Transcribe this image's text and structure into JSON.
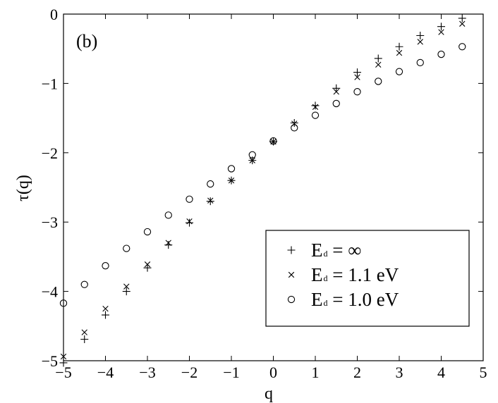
{
  "chart_data": {
    "type": "scatter",
    "panel_label": "(b)",
    "xlabel": "q",
    "ylabel": "τ(q)",
    "xlim": [
      -5,
      5
    ],
    "ylim": [
      -5,
      0
    ],
    "xticks": [
      "−5",
      "−4",
      "−3",
      "−2",
      "−1",
      "0",
      "1",
      "2",
      "3",
      "4",
      "5"
    ],
    "yticks": [
      "0",
      "−1",
      "−2",
      "−3",
      "−4",
      "−5"
    ],
    "grid": false,
    "legend_position": "lower-right",
    "series": [
      {
        "name": "E d = ∞",
        "legend": {
          "main": "E",
          "sub": "d",
          "rest": " = ∞"
        },
        "marker": "plus",
        "x": [
          -5,
          -4.5,
          -4,
          -3.5,
          -3,
          -2.5,
          -2,
          -1.5,
          -1,
          -0.5,
          0,
          0.5,
          1,
          1.5,
          2,
          2.5,
          3,
          3.5,
          4,
          4.5
        ],
        "y": [
          -5.03,
          -4.69,
          -4.34,
          -4.0,
          -3.66,
          -3.33,
          -3.01,
          -2.7,
          -2.4,
          -2.11,
          -1.84,
          -1.57,
          -1.32,
          -1.07,
          -0.84,
          -0.64,
          -0.47,
          -0.31,
          -0.18,
          -0.06
        ]
      },
      {
        "name": "E d = 1.1 eV",
        "legend": {
          "main": "E",
          "sub": "d",
          "rest": " = 1.1 eV"
        },
        "marker": "cross",
        "x": [
          -5,
          -4.5,
          -4,
          -3.5,
          -3,
          -2.5,
          -2,
          -1.5,
          -1,
          -0.5,
          0,
          0.5,
          1,
          1.5,
          2,
          2.5,
          3,
          3.5,
          4,
          4.5
        ],
        "y": [
          -4.94,
          -4.59,
          -4.25,
          -3.93,
          -3.61,
          -3.3,
          -2.99,
          -2.69,
          -2.4,
          -2.11,
          -1.84,
          -1.58,
          -1.34,
          -1.12,
          -0.91,
          -0.73,
          -0.56,
          -0.4,
          -0.26,
          -0.14
        ]
      },
      {
        "name": "E d = 1.0 eV",
        "legend": {
          "main": "E",
          "sub": "d",
          "rest": " = 1.0 eV"
        },
        "marker": "circle",
        "x": [
          -5,
          -4.5,
          -4,
          -3.5,
          -3,
          -2.5,
          -2,
          -1.5,
          -1,
          -0.5,
          0,
          0.5,
          1,
          1.5,
          2,
          2.5,
          3,
          3.5,
          4,
          4.5
        ],
        "y": [
          -4.17,
          -3.9,
          -3.63,
          -3.38,
          -3.14,
          -2.9,
          -2.67,
          -2.45,
          -2.23,
          -2.03,
          -1.83,
          -1.64,
          -1.46,
          -1.29,
          -1.12,
          -0.97,
          -0.83,
          -0.7,
          -0.58,
          -0.47
        ]
      }
    ]
  }
}
